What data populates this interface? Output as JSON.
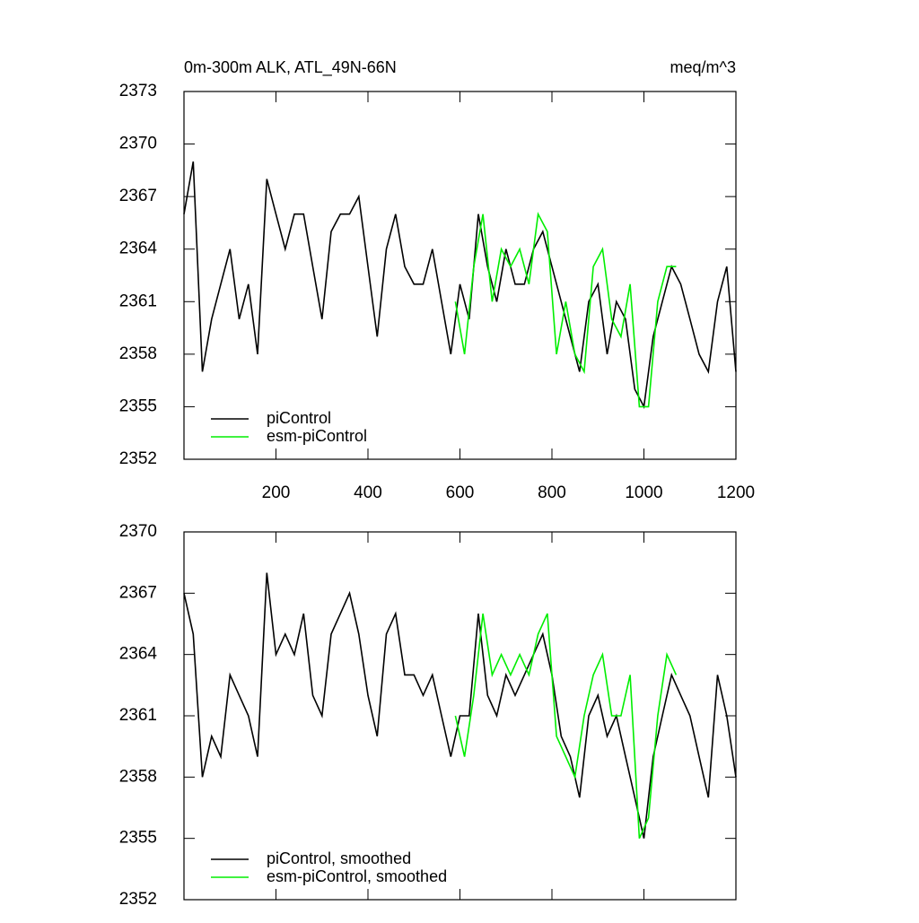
{
  "chart_data": [
    {
      "type": "line",
      "title": "0m-300m ALK, ATL_49N-66N",
      "units": "meq/m^3",
      "xlim": [
        0,
        1200
      ],
      "xticks": [
        200,
        400,
        600,
        800,
        1000,
        1200
      ],
      "ylim": [
        2352,
        2373
      ],
      "yticks": [
        2352,
        2355,
        2358,
        2361,
        2364,
        2367,
        2370,
        2373
      ],
      "legend": "lower left",
      "series": [
        {
          "name": "piControl",
          "color": "#000000",
          "x": [
            0,
            20,
            40,
            60,
            80,
            100,
            120,
            140,
            160,
            180,
            200,
            220,
            240,
            260,
            280,
            300,
            320,
            340,
            360,
            380,
            400,
            420,
            440,
            460,
            480,
            500,
            520,
            540,
            560,
            580,
            600,
            620,
            640,
            660,
            680,
            700,
            720,
            740,
            760,
            780,
            800,
            820,
            840,
            860,
            880,
            900,
            920,
            940,
            960,
            980,
            1000,
            1020,
            1040,
            1060,
            1080,
            1100,
            1120,
            1140,
            1160,
            1180,
            1200
          ],
          "values": [
            2366,
            2369,
            2357,
            2360,
            2362,
            2364,
            2360,
            2362,
            2358,
            2368,
            2366,
            2364,
            2366,
            2366,
            2363,
            2360,
            2365,
            2366,
            2366,
            2367,
            2363,
            2359,
            2364,
            2366,
            2363,
            2362,
            2362,
            2364,
            2361,
            2358,
            2362,
            2360,
            2366,
            2363,
            2361,
            2364,
            2362,
            2362,
            2364,
            2365,
            2363,
            2361,
            2359,
            2357,
            2361,
            2362,
            2358,
            2361,
            2360,
            2356,
            2355,
            2359,
            2361,
            2363,
            2362,
            2360,
            2358,
            2357,
            2361,
            2363,
            2357
          ]
        },
        {
          "name": "esm-piControl",
          "color": "#00ee00",
          "x": [
            590,
            610,
            630,
            650,
            670,
            690,
            710,
            730,
            750,
            770,
            790,
            810,
            830,
            850,
            870,
            890,
            910,
            930,
            950,
            970,
            990,
            1010,
            1030,
            1050,
            1070
          ],
          "values": [
            2361,
            2358,
            2363,
            2366,
            2361,
            2364,
            2363,
            2364,
            2362,
            2366,
            2365,
            2358,
            2361,
            2358,
            2357,
            2363,
            2364,
            2360,
            2359,
            2362,
            2355,
            2355,
            2361,
            2363,
            2363
          ]
        }
      ]
    },
    {
      "type": "line",
      "xlim": [
        0,
        1200
      ],
      "ylim": [
        2352,
        2370
      ],
      "yticks": [
        2352,
        2355,
        2358,
        2361,
        2364,
        2367,
        2370
      ],
      "legend": "lower left",
      "series": [
        {
          "name": "piControl, smoothed",
          "color": "#000000",
          "x": [
            0,
            20,
            40,
            60,
            80,
            100,
            120,
            140,
            160,
            180,
            200,
            220,
            240,
            260,
            280,
            300,
            320,
            340,
            360,
            380,
            400,
            420,
            440,
            460,
            480,
            500,
            520,
            540,
            560,
            580,
            600,
            620,
            640,
            660,
            680,
            700,
            720,
            740,
            760,
            780,
            800,
            820,
            840,
            860,
            880,
            900,
            920,
            940,
            960,
            980,
            1000,
            1020,
            1040,
            1060,
            1080,
            1100,
            1120,
            1140,
            1160,
            1180,
            1200
          ],
          "values": [
            2367,
            2365,
            2358,
            2360,
            2359,
            2363,
            2362,
            2361,
            2359,
            2368,
            2364,
            2365,
            2364,
            2366,
            2362,
            2361,
            2365,
            2366,
            2367,
            2365,
            2362,
            2360,
            2365,
            2366,
            2363,
            2363,
            2362,
            2363,
            2361,
            2359,
            2361,
            2361,
            2366,
            2362,
            2361,
            2363,
            2362,
            2363,
            2364,
            2365,
            2363,
            2360,
            2359,
            2357,
            2361,
            2362,
            2360,
            2361,
            2359,
            2357,
            2355,
            2359,
            2361,
            2363,
            2362,
            2361,
            2359,
            2357,
            2363,
            2361,
            2358
          ]
        },
        {
          "name": "esm-piControl, smoothed",
          "color": "#00ee00",
          "x": [
            590,
            610,
            630,
            650,
            670,
            690,
            710,
            730,
            750,
            770,
            790,
            810,
            830,
            850,
            870,
            890,
            910,
            930,
            950,
            970,
            990,
            1010,
            1030,
            1050,
            1070
          ],
          "values": [
            2361,
            2359,
            2362,
            2366,
            2363,
            2364,
            2363,
            2364,
            2363,
            2365,
            2366,
            2360,
            2359,
            2358,
            2361,
            2363,
            2364,
            2361,
            2361,
            2363,
            2355,
            2356,
            2361,
            2364,
            2363
          ]
        }
      ]
    }
  ]
}
